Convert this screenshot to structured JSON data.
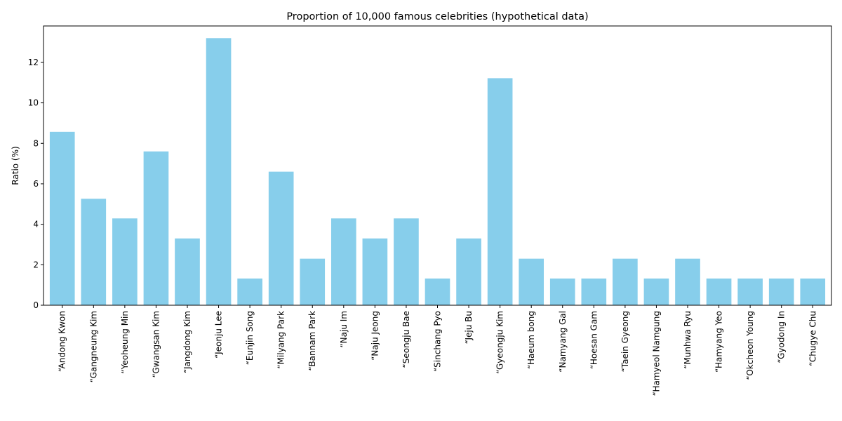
{
  "chart_data": {
    "type": "bar",
    "title": "Proportion of 10,000 famous celebrities (hypothetical data)",
    "xlabel": "",
    "ylabel": "Ratio (%)",
    "ylim": [
      0,
      13.8
    ],
    "yticks": [
      0,
      2,
      4,
      6,
      8,
      10,
      12
    ],
    "bar_color": "#87ceeb",
    "grid": false,
    "categories": [
      "“Andong Kwon",
      "“Gangneung Kim",
      "“Yeoheung Min",
      "“Gwangsan Kim",
      "“Jangdong Kim",
      "“Jeonju Lee",
      "“Eunjin Song",
      "“Milyang Park",
      "“Bannam Park",
      "“Naju Im",
      "“Naju Jeong",
      "“Seongju Bae",
      "“Sinchang Pyo",
      "“Jeju Bu",
      "“Gyeongju Kim",
      "“Haeum bong",
      "“Namyang Gal",
      "“Hoesan Gam",
      "“Taein Gyeong",
      "“Hamyeol Namgung",
      "“Munhwa Ryu",
      "“Hamyang Yeo",
      "“Okcheon Young",
      "“Gyodong In",
      "“Chugye Chu"
    ],
    "values": [
      8.57,
      5.26,
      4.29,
      7.6,
      3.3,
      13.2,
      1.32,
      6.6,
      2.3,
      4.29,
      3.3,
      4.29,
      1.32,
      3.3,
      11.22,
      2.3,
      1.32,
      1.32,
      2.3,
      1.32,
      2.3,
      1.32,
      1.32,
      1.32,
      1.32
    ]
  }
}
